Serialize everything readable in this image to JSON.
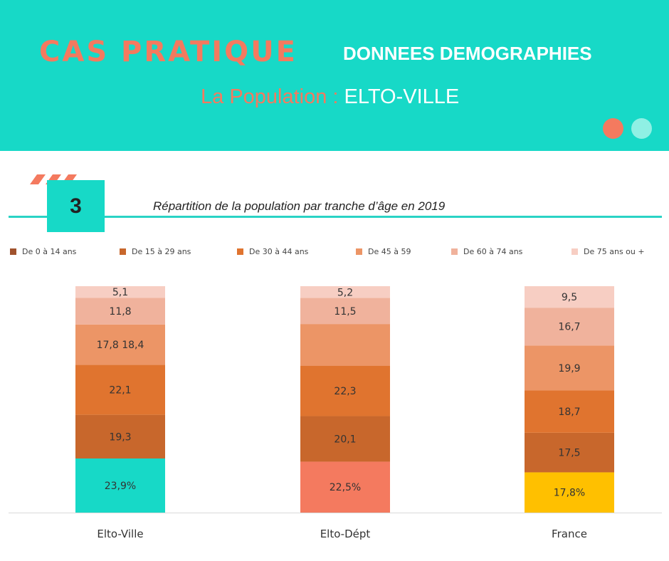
{
  "header": {
    "title": "CAS PRATIQUE",
    "subtitle_right": "DONNEES DEMOGRAPHIES",
    "population_label": "La Population : ",
    "city": "ELTO-VILLE",
    "colors": {
      "background": "#17d9c7",
      "accent": "#f47a5f",
      "dot_light": "#8ff0e4"
    }
  },
  "section": {
    "number": "3",
    "title": "Répartition de la population par tranche d’âge en 2019"
  },
  "chart_data": {
    "type": "bar",
    "stacked": true,
    "title": "Répartition de la population par tranche d’âge en 2019",
    "categories": [
      "Elto-Ville",
      "Elto-Dépt",
      "France"
    ],
    "series": [
      {
        "name": "De 0 à 14 ans",
        "values": [
          23.9,
          22.5,
          17.8
        ],
        "color": "#a0522d"
      },
      {
        "name": "De 15 à 29 ans",
        "values": [
          19.3,
          20.1,
          17.5
        ],
        "color": "#c8672c"
      },
      {
        "name": "De 30 à 44 ans",
        "values": [
          22.1,
          22.3,
          18.7
        ],
        "color": "#e0742f"
      },
      {
        "name": "De 45 à 59",
        "values": [
          17.8,
          18.4,
          19.9
        ],
        "color": "#ec9566"
      },
      {
        "name": "De 60 à 74 ans",
        "values": [
          11.8,
          11.5,
          16.7
        ],
        "color": "#f0b29c"
      },
      {
        "name": "De 75 ans ou +",
        "values": [
          5.1,
          5.2,
          9.5
        ],
        "color": "#f7cec3"
      }
    ],
    "first_segment_colors": [
      "#17d9c7",
      "#f47a5f",
      "#ffc000"
    ],
    "segment_labels": [
      [
        "23,9%",
        "19,3",
        "22,1",
        "17,8 18,4",
        "11,8",
        "5,1"
      ],
      [
        "22,5%",
        "20,1",
        "22,3",
        "",
        "11,5",
        "5,2"
      ],
      [
        "17,8%",
        "17,5",
        "18,7",
        "19,9",
        "16,7",
        "9,5"
      ]
    ],
    "legend_position": "top",
    "ylim": [
      0,
      100
    ]
  }
}
